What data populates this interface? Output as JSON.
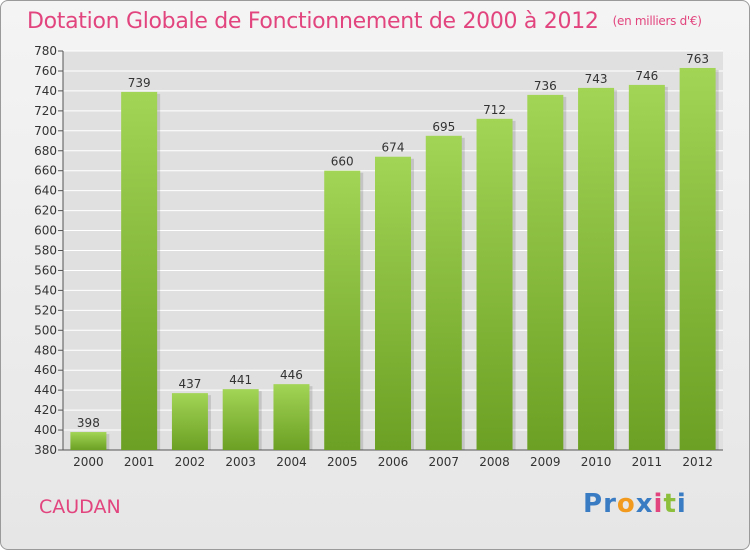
{
  "title": "Dotation Globale de Fonctionnement de 2000 à 2012",
  "units_note": "(en milliers d'€)",
  "commune": "CAUDAN",
  "logo": {
    "text": "Proxiti",
    "letters": [
      {
        "ch": "P",
        "color": "#3a7cc4"
      },
      {
        "ch": "r",
        "color": "#3a7cc4"
      },
      {
        "ch": "o",
        "color": "#f29a1d"
      },
      {
        "ch": "x",
        "color": "#3a7cc4"
      },
      {
        "ch": "i",
        "color": "#e2457e"
      },
      {
        "ch": "t",
        "color": "#8dbf3c"
      },
      {
        "ch": "i",
        "color": "#3a7cc4"
      }
    ]
  },
  "colors": {
    "bar_light": "#a2d455",
    "bar_dark": "#6ba024",
    "title": "#e2457e",
    "grid": "#ffffff"
  },
  "chart_data": {
    "type": "bar",
    "categories": [
      "2000",
      "2001",
      "2002",
      "2003",
      "2004",
      "2005",
      "2006",
      "2007",
      "2008",
      "2009",
      "2010",
      "2011",
      "2012"
    ],
    "values": [
      398,
      739,
      437,
      441,
      446,
      660,
      674,
      695,
      712,
      736,
      743,
      746,
      763
    ],
    "ylim": [
      380,
      780
    ],
    "ytick_step": 20,
    "grid": true
  }
}
